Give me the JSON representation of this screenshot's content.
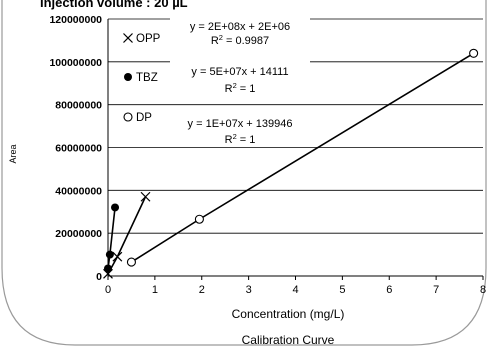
{
  "chart_data": {
    "type": "scatter",
    "title": "Injection volume      : 20 µL",
    "xlabel": "Concentration (mg/L)",
    "ylabel": "Area",
    "caption": "Calibration Curve",
    "xlim": [
      0,
      8
    ],
    "ylim": [
      0,
      120000000
    ],
    "x_ticks": [
      "0",
      "1",
      "2",
      "3",
      "4",
      "5",
      "6",
      "7",
      "8"
    ],
    "y_ticks": [
      "0",
      "20000000",
      "40000000",
      "60000000",
      "80000000",
      "100000000",
      "120000000"
    ],
    "grid": "horizontal",
    "legend_position": "top-left",
    "series": [
      {
        "name": "OPP",
        "marker": "x",
        "x": [
          0.0,
          0.2,
          0.8
        ],
        "y": [
          1000000,
          9000000,
          37000000
        ],
        "equation": "y = 2E+08x + 2E+06",
        "r2": "R = 0.9987"
      },
      {
        "name": "TBZ",
        "marker": "filled-circle",
        "x": [
          0.0,
          0.04,
          0.15
        ],
        "y": [
          3500000,
          10000000,
          32000000
        ],
        "equation": "y = 5E+07x + 14111",
        "r2": "R = 1"
      },
      {
        "name": "DP",
        "marker": "open-circle",
        "x": [
          0.5,
          1.95,
          7.8
        ],
        "y": [
          6500000,
          26500000,
          104000000
        ],
        "equation": "y = 1E+07x + 139946",
        "r2": "R = 1"
      }
    ]
  }
}
